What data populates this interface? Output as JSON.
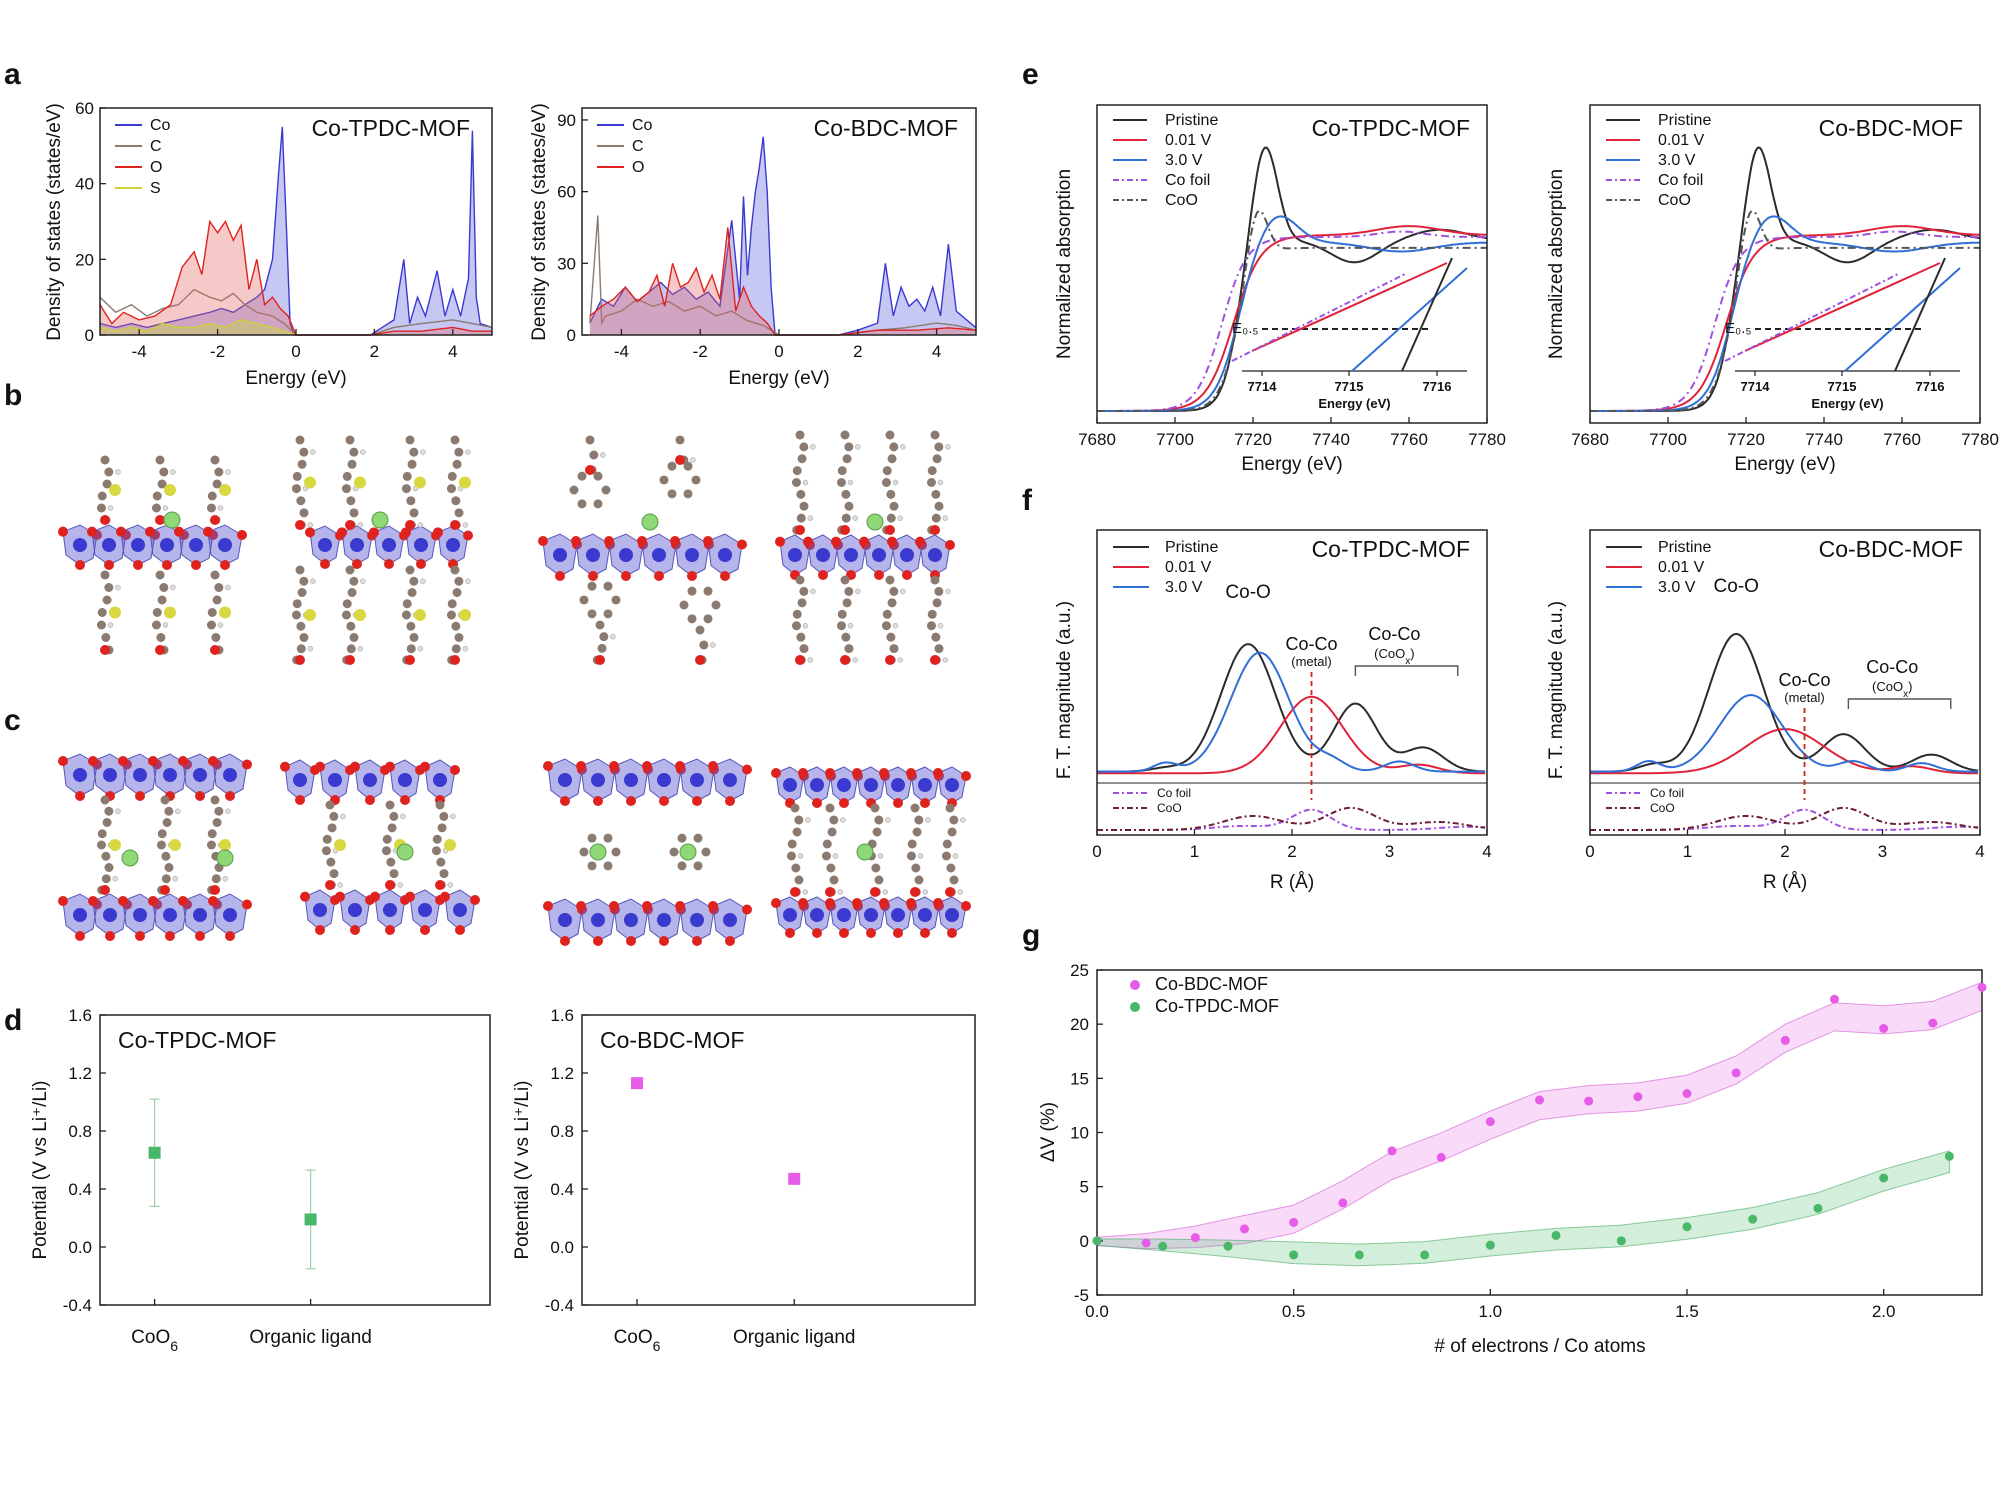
{
  "panel_labels": {
    "a": "a",
    "b": "b",
    "c": "c",
    "d": "d",
    "e": "e",
    "f": "f",
    "g": "g"
  },
  "colors": {
    "co": "#3a3ad0",
    "c": "#8a7a70",
    "o": "#e0221e",
    "s": "#c9d33a",
    "pristine": "#2b2b2b",
    "v001": "#e0223a",
    "v30": "#2f6fd6",
    "cofoil": "#a050e0",
    "coo": "#555555",
    "bdc": "#e65ce6",
    "tpdc": "#48b868"
  },
  "chart_data": [
    {
      "id": "dos-tpdc",
      "type": "area",
      "title": "Co-TPDC-MOF",
      "xlabel": "Energy (eV)",
      "ylabel": "Density of states (states/eV)",
      "xlim": [
        -5,
        5
      ],
      "ylim": [
        0,
        60
      ],
      "xticks": [
        "-4",
        "-2",
        "0",
        "2",
        "4"
      ],
      "yticks": [
        "0",
        "20",
        "40",
        "60"
      ],
      "legend": [
        "Co",
        "C",
        "O",
        "S"
      ],
      "series": [
        {
          "name": "Co",
          "color": "#3a3ad0",
          "fill": "rgba(70,70,220,0.30)",
          "x": [
            -5,
            -4.6,
            -4.2,
            -3.8,
            -3.4,
            -3,
            -2.6,
            -2.2,
            -1.9,
            -1.6,
            -1.3,
            -1,
            -0.8,
            -0.6,
            -0.45,
            -0.35,
            -0.25,
            -0.15,
            -0.05,
            1.9,
            2.2,
            2.5,
            2.75,
            2.9,
            3.1,
            3.3,
            3.6,
            3.8,
            4.0,
            4.2,
            4.4,
            4.5,
            4.6,
            4.7,
            5
          ],
          "y": [
            3,
            2,
            3,
            2,
            3,
            4,
            5,
            6,
            7,
            6,
            8,
            10,
            12,
            20,
            42,
            55,
            30,
            3,
            0,
            0,
            2,
            4,
            20,
            3,
            10,
            5,
            17,
            5,
            12,
            5,
            15,
            54,
            10,
            3,
            2
          ]
        },
        {
          "name": "C",
          "color": "#8a7a70",
          "x": [
            -5,
            -4.6,
            -4.2,
            -3.8,
            -3.4,
            -3,
            -2.6,
            -2.2,
            -1.9,
            -1.6,
            -1.3,
            -1,
            -0.6,
            -0.3,
            0,
            1.9,
            2.5,
            3.2,
            4,
            4.5,
            5
          ],
          "y": [
            10,
            6,
            8,
            5,
            7,
            8,
            12,
            10,
            9,
            11,
            8,
            6,
            5,
            3,
            0,
            0,
            2,
            3,
            4,
            3,
            2
          ]
        },
        {
          "name": "O",
          "color": "#e0221e",
          "fill": "rgba(230,100,100,0.35)",
          "x": [
            -5,
            -4.7,
            -4.4,
            -4,
            -3.6,
            -3.2,
            -2.9,
            -2.6,
            -2.4,
            -2.2,
            -2.0,
            -1.8,
            -1.6,
            -1.4,
            -1.2,
            -1.0,
            -0.8,
            -0.6,
            -0.4,
            -0.2,
            0,
            1.9,
            2.5,
            3.2,
            4,
            4.5,
            5
          ],
          "y": [
            8,
            3,
            6,
            4,
            5,
            8,
            18,
            22,
            16,
            30,
            27,
            30,
            25,
            29,
            12,
            20,
            8,
            10,
            7,
            5,
            0,
            0,
            1,
            1,
            2,
            1,
            1
          ]
        },
        {
          "name": "S",
          "color": "#c9d33a",
          "fill": "rgba(200,210,80,0.45)",
          "x": [
            -5,
            -4.6,
            -4.2,
            -3.8,
            -3.4,
            -3,
            -2.6,
            -2.2,
            -1.8,
            -1.4,
            -1.0,
            -0.6,
            -0.3,
            0
          ],
          "y": [
            2,
            1,
            2,
            1,
            3,
            2,
            2,
            3,
            2,
            4,
            3,
            2,
            1,
            0
          ]
        }
      ]
    },
    {
      "id": "dos-bdc",
      "type": "area",
      "title": "Co-BDC-MOF",
      "xlabel": "Energy (eV)",
      "ylabel": "Density of states (states/eV)",
      "xlim": [
        -5,
        5
      ],
      "ylim": [
        0,
        95
      ],
      "xticks": [
        "-4",
        "-2",
        "0",
        "2",
        "4"
      ],
      "yticks": [
        "0",
        "30",
        "60",
        "90"
      ],
      "legend": [
        "Co",
        "C",
        "O"
      ],
      "series": [
        {
          "name": "Co",
          "color": "#3a3ad0",
          "fill": "rgba(70,70,220,0.30)",
          "x": [
            -4.8,
            -4.5,
            -4.2,
            -3.9,
            -3.6,
            -3.3,
            -3,
            -2.7,
            -2.4,
            -2.1,
            -1.8,
            -1.5,
            -1.2,
            -1.0,
            -0.9,
            -0.8,
            -0.7,
            -0.6,
            -0.5,
            -0.4,
            -0.3,
            -0.2,
            -0.1,
            1.5,
            2.0,
            2.5,
            2.7,
            2.9,
            3.1,
            3.3,
            3.5,
            3.7,
            3.9,
            4.1,
            4.3,
            4.5,
            5
          ],
          "y": [
            5,
            15,
            12,
            20,
            14,
            18,
            22,
            17,
            20,
            15,
            18,
            12,
            48,
            15,
            58,
            25,
            45,
            60,
            70,
            83,
            60,
            20,
            0,
            0,
            2,
            5,
            30,
            8,
            20,
            12,
            15,
            10,
            20,
            8,
            38,
            10,
            3
          ]
        },
        {
          "name": "C",
          "color": "#8a7a70",
          "x": [
            -4.8,
            -4.6,
            -4.5,
            -4.4,
            -4.0,
            -3.6,
            -3.2,
            -2.8,
            -2.4,
            -2.0,
            -1.6,
            -1.2,
            -0.8,
            -0.4,
            0,
            1.5,
            2.5,
            3.2,
            4,
            4.5,
            5
          ],
          "y": [
            5,
            50,
            5,
            8,
            10,
            15,
            12,
            14,
            10,
            12,
            8,
            10,
            6,
            4,
            0,
            0,
            2,
            3,
            5,
            4,
            2
          ]
        },
        {
          "name": "O",
          "color": "#e0221e",
          "fill": "rgba(230,100,100,0.35)",
          "x": [
            -4.8,
            -4.5,
            -4.2,
            -3.9,
            -3.6,
            -3.3,
            -3.1,
            -2.9,
            -2.7,
            -2.5,
            -2.3,
            -2.1,
            -1.9,
            -1.7,
            -1.5,
            -1.3,
            -1.1,
            -0.9,
            -0.7,
            -0.5,
            -0.3,
            -0.1,
            1.5,
            2.5,
            3.5,
            4.3,
            5
          ],
          "y": [
            8,
            12,
            15,
            20,
            14,
            18,
            25,
            12,
            30,
            20,
            22,
            28,
            18,
            25,
            15,
            45,
            10,
            20,
            12,
            8,
            5,
            0,
            0,
            2,
            2,
            3,
            2
          ]
        }
      ]
    },
    {
      "id": "pot-tpdc",
      "type": "scatter",
      "title": "Co-TPDC-MOF",
      "ylabel": "Potential (V vs Li⁺/Li)",
      "ylim": [
        -0.4,
        1.6
      ],
      "yticks": [
        "-0.4",
        "0.0",
        "0.4",
        "0.8",
        "1.2",
        "1.6"
      ],
      "categories": [
        "CoO₆",
        "Organic ligand"
      ],
      "values": [
        0.65,
        0.19
      ],
      "errors": [
        0.37,
        0.34
      ],
      "color": "#48b868"
    },
    {
      "id": "pot-bdc",
      "type": "scatter",
      "title": "Co-BDC-MOF",
      "ylabel": "Potential (V vs Li⁺/Li)",
      "ylim": [
        -0.4,
        1.6
      ],
      "yticks": [
        "-0.4",
        "0.0",
        "0.4",
        "0.8",
        "1.2",
        "1.6"
      ],
      "categories": [
        "CoO₆",
        "Organic ligand"
      ],
      "values": [
        1.13,
        0.47
      ],
      "color": "#e65ce6"
    },
    {
      "id": "xanes-tpdc",
      "type": "line",
      "title": "Co-TPDC-MOF",
      "xlabel": "Energy (eV)",
      "ylabel": "Normalized absorption",
      "xlim": [
        7680,
        7780
      ],
      "xticks": [
        "7680",
        "7700",
        "7720",
        "7740",
        "7760",
        "7780"
      ],
      "legend": [
        "Pristine",
        "0.01 V",
        "3.0 V",
        "Co foil",
        "CoO"
      ],
      "inset": {
        "label": "E₀.₅",
        "xlabel": "Energy (eV)",
        "xticks": [
          "7714",
          "7715",
          "7716"
        ]
      }
    },
    {
      "id": "xanes-bdc",
      "type": "line",
      "title": "Co-BDC-MOF",
      "xlabel": "Energy (eV)",
      "ylabel": "Normalized absorption",
      "xlim": [
        7680,
        7780
      ],
      "xticks": [
        "7680",
        "7700",
        "7720",
        "7740",
        "7760",
        "7780"
      ],
      "legend": [
        "Pristine",
        "0.01 V",
        "3.0 V",
        "Co foil",
        "CoO"
      ],
      "inset": {
        "label": "E₀.₅",
        "xlabel": "Energy (eV)",
        "xticks": [
          "7714",
          "7715",
          "7716"
        ]
      }
    },
    {
      "id": "exafs-tpdc",
      "type": "line",
      "title": "Co-TPDC-MOF",
      "xlabel": "R (Å)",
      "ylabel": "F. T. magnitude (a.u.)",
      "xlim": [
        0,
        4
      ],
      "xticks": [
        "0",
        "1",
        "2",
        "3",
        "4"
      ],
      "legend": [
        "Pristine",
        "0.01 V",
        "3.0 V"
      ],
      "legend2": [
        "Co foil",
        "CoO"
      ],
      "annotations": [
        "Co-O",
        "Co-Co",
        "(metal)",
        "Co-Co",
        "(CoO",
        "x",
        ")"
      ]
    },
    {
      "id": "exafs-bdc",
      "type": "line",
      "title": "Co-BDC-MOF",
      "xlabel": "R (Å)",
      "ylabel": "F. T. magnitude (a.u.)",
      "xlim": [
        0,
        4
      ],
      "xticks": [
        "0",
        "1",
        "2",
        "3",
        "4"
      ],
      "legend": [
        "Pristine",
        "0.01 V",
        "3.0 V"
      ],
      "legend2": [
        "Co foil",
        "CoO"
      ],
      "annotations": [
        "Co-O",
        "Co-Co",
        "(metal)",
        "Co-Co",
        "(CoO",
        "x",
        ")"
      ]
    },
    {
      "id": "volume",
      "type": "scatter",
      "xlabel": "# of electrons / Co atoms",
      "ylabel": "ΔV (%)",
      "xlim": [
        0,
        2.25
      ],
      "ylim": [
        -5,
        25
      ],
      "xticks": [
        "0.0",
        "0.5",
        "1.0",
        "1.5",
        "2.0"
      ],
      "yticks": [
        "-5",
        "0",
        "5",
        "10",
        "15",
        "20",
        "25"
      ],
      "series": [
        {
          "name": "Co-BDC-MOF",
          "color": "#e65ce6",
          "x": [
            0,
            0.125,
            0.25,
            0.375,
            0.5,
            0.625,
            0.75,
            0.875,
            1.0,
            1.125,
            1.25,
            1.375,
            1.5,
            1.625,
            1.75,
            1.875,
            2.0,
            2.125,
            2.25
          ],
          "y": [
            0,
            -0.2,
            0.3,
            1.1,
            1.7,
            3.5,
            8.3,
            7.7,
            11,
            13,
            12.9,
            13.3,
            13.6,
            15.5,
            18.5,
            22.3,
            19.6,
            20.1,
            23.4
          ]
        },
        {
          "name": "Co-TPDC-MOF",
          "color": "#48b868",
          "x": [
            0,
            0.167,
            0.333,
            0.5,
            0.667,
            0.833,
            1.0,
            1.167,
            1.333,
            1.5,
            1.667,
            1.833,
            2.0,
            2.167
          ],
          "y": [
            0,
            -0.5,
            -0.5,
            -1.3,
            -1.3,
            -1.3,
            -0.4,
            0.5,
            0,
            1.3,
            2,
            3,
            5.8,
            7.8
          ]
        }
      ]
    }
  ]
}
